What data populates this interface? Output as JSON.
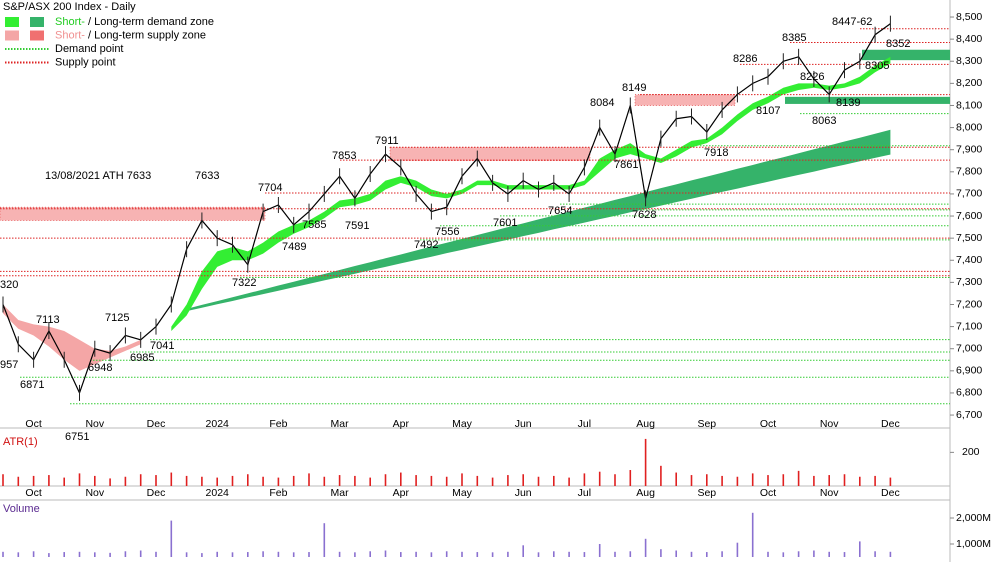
{
  "chart_data": {
    "type": "line",
    "title": "S&P/ASX 200 Index - Daily",
    "categories": [
      null,
      null,
      "Oct",
      null,
      null,
      null,
      "Nov",
      null,
      null,
      null,
      "Dec",
      null,
      null,
      null,
      "2024",
      null,
      null,
      null,
      "Feb",
      null,
      null,
      null,
      "Mar",
      null,
      null,
      null,
      "Apr",
      null,
      null,
      null,
      "May",
      null,
      null,
      null,
      "Jun",
      null,
      null,
      null,
      "Jul",
      null,
      null,
      null,
      "Aug",
      null,
      null,
      null,
      "Sep",
      null,
      null,
      null,
      "Oct",
      null,
      null,
      null,
      "Nov",
      null,
      null,
      null,
      "Dec"
    ],
    "price": {
      "color": "#000000",
      "values": [
        7200,
        7020,
        6950,
        7080,
        6950,
        6800,
        7000,
        6980,
        7060,
        7040,
        7100,
        7200,
        7450,
        7580,
        7500,
        7470,
        7380,
        7620,
        7650,
        7560,
        7620,
        7700,
        7780,
        7680,
        7790,
        7880,
        7820,
        7700,
        7620,
        7640,
        7780,
        7860,
        7750,
        7700,
        7760,
        7720,
        7750,
        7700,
        7820,
        8000,
        7880,
        8100,
        7680,
        7950,
        8040,
        8050,
        7980,
        8080,
        8150,
        8200,
        8230,
        8300,
        8320,
        8220,
        8150,
        8260,
        8300,
        8420,
        8470
      ]
    },
    "short_term_supply_zone": {
      "color": "#f4a6a6",
      "upper": [
        7200,
        7130,
        7110,
        7100,
        7080,
        7040,
        7000,
        6990,
        7010,
        7040,
        null,
        null,
        null,
        null,
        null,
        null,
        null,
        null,
        null,
        null,
        null,
        null,
        null,
        null,
        null,
        null,
        null,
        null,
        null,
        null,
        null,
        null,
        null,
        null,
        null,
        null,
        null,
        null,
        null,
        null,
        null,
        null,
        null,
        null,
        null,
        null,
        null,
        null,
        null,
        null,
        null,
        null,
        null,
        null,
        null,
        null,
        null,
        null,
        null
      ],
      "lower": [
        7160,
        7090,
        7060,
        7010,
        6950,
        6900,
        6930,
        6960,
        6990,
        7020,
        null,
        null,
        null,
        null,
        null,
        null,
        null,
        null,
        null,
        null,
        null,
        null,
        null,
        null,
        null,
        null,
        null,
        null,
        null,
        null,
        null,
        null,
        null,
        null,
        null,
        null,
        null,
        null,
        null,
        null,
        null,
        null,
        null,
        null,
        null,
        null,
        null,
        null,
        null,
        null,
        null,
        null,
        null,
        null,
        null,
        null,
        null,
        null,
        null
      ]
    },
    "short_term_demand_zone": {
      "color": "#33ee33",
      "upper": [
        null,
        null,
        null,
        null,
        null,
        null,
        null,
        null,
        null,
        null,
        null,
        7100,
        7200,
        7350,
        7440,
        7460,
        7440,
        7480,
        7530,
        7560,
        7580,
        7620,
        7670,
        7680,
        7700,
        7760,
        7780,
        7760,
        7720,
        7700,
        7720,
        7760,
        7760,
        7740,
        7740,
        7740,
        7740,
        7740,
        7760,
        7860,
        7900,
        7930,
        7880,
        7860,
        7900,
        7940,
        7950,
        8000,
        8060,
        8110,
        8140,
        8180,
        8200,
        8200,
        8190,
        8200,
        8230,
        8280,
        8320
      ],
      "lower": [
        null,
        null,
        null,
        null,
        null,
        null,
        null,
        null,
        null,
        null,
        null,
        7080,
        7150,
        7270,
        7370,
        7400,
        7400,
        7430,
        7480,
        7520,
        7550,
        7590,
        7640,
        7650,
        7670,
        7720,
        7750,
        7730,
        7690,
        7680,
        7700,
        7740,
        7740,
        7720,
        7720,
        7720,
        7720,
        7720,
        7740,
        7800,
        7860,
        7880,
        7860,
        7840,
        7870,
        7910,
        7930,
        7970,
        8030,
        8080,
        8110,
        8150,
        8170,
        8180,
        8170,
        8180,
        8200,
        8250,
        8290
      ]
    },
    "long_term_demand_zone": {
      "color": "#35b36a",
      "upper": [
        null,
        null,
        null,
        null,
        null,
        null,
        null,
        null,
        null,
        null,
        null,
        null,
        7180,
        7198,
        7215,
        7233,
        7250,
        7268,
        7286,
        7303,
        7321,
        7338,
        7356,
        7374,
        7391,
        7409,
        7426,
        7444,
        7462,
        7479,
        7497,
        7514,
        7532,
        7550,
        7567,
        7585,
        7602,
        7620,
        7638,
        7655,
        7673,
        7690,
        7708,
        7726,
        7743,
        7761,
        7778,
        7796,
        7814,
        7831,
        7849,
        7866,
        7884,
        7902,
        7919,
        7937,
        7954,
        7972,
        7990
      ],
      "lower": [
        null,
        null,
        null,
        null,
        null,
        null,
        null,
        null,
        null,
        null,
        null,
        null,
        7170,
        7185,
        7201,
        7216,
        7232,
        7247,
        7262,
        7278,
        7293,
        7309,
        7324,
        7339,
        7355,
        7370,
        7386,
        7401,
        7416,
        7432,
        7447,
        7463,
        7478,
        7493,
        7509,
        7524,
        7540,
        7555,
        7570,
        7586,
        7601,
        7617,
        7632,
        7647,
        7663,
        7678,
        7694,
        7709,
        7724,
        7740,
        7755,
        7771,
        7786,
        7801,
        7817,
        7832,
        7848,
        7863,
        7878
      ]
    },
    "supply_zones": [
      {
        "low": 7580,
        "high": 7640
      },
      {
        "low": 7850,
        "high": 7911
      },
      {
        "low": 8100,
        "high": 8149
      }
    ],
    "demand_zones": [
      {
        "low": 8305,
        "high": 8352
      },
      {
        "low": 8107,
        "high": 8139
      }
    ],
    "supply_zone_color": "#f7b3b3",
    "demand_zone_color": "#35b36a",
    "demand_points": [
      8063,
      7918,
      7654,
      7628,
      7601,
      7556,
      7492,
      7322,
      7041,
      6985,
      6948,
      6871,
      6751
    ],
    "demand_point_color": "#33cc33",
    "supply_points": [
      8447,
      8385,
      8286,
      8149,
      7911,
      7853,
      7704,
      7633,
      7500,
      7350,
      7330
    ],
    "supply_point_color": "#dd2222",
    "annotations": [
      "320",
      "7113",
      "7125",
      "957",
      "6871",
      "6751",
      "6948",
      "6985",
      "7041",
      "7322",
      "7633",
      "7704",
      "7489",
      "7585",
      "7853",
      "7591",
      "7911",
      "7492",
      "7556",
      "7601",
      "7654",
      "7628",
      "7861",
      "8084",
      "8149",
      "7918",
      "8107",
      "8286",
      "8385",
      "8226",
      "8063",
      "8139",
      "8305",
      "8352",
      "8447-62",
      "13/08/2021 ATH 7633"
    ],
    "legend": [
      {
        "parts": [
          "Short-",
          "/ Long-term demand zone"
        ]
      },
      {
        "parts": [
          "Short-",
          "/ Long-term supply zone"
        ]
      },
      {
        "parts": [
          "Demand point"
        ]
      },
      {
        "parts": [
          "Supply point"
        ]
      }
    ],
    "ylim": [
      6655,
      8577
    ],
    "yticks": [
      {
        "value": 8500,
        "label": "8,500"
      },
      {
        "value": 8400,
        "label": "8,400"
      },
      {
        "value": 8300,
        "label": "8,300"
      },
      {
        "value": 8200,
        "label": "8,200"
      },
      {
        "value": 8100,
        "label": "8,100"
      },
      {
        "value": 8000,
        "label": "8,000"
      },
      {
        "value": 7900,
        "label": "7,900"
      },
      {
        "value": 7800,
        "label": "7,800"
      },
      {
        "value": 7700,
        "label": "7,700"
      },
      {
        "value": 7600,
        "label": "7,600"
      },
      {
        "value": 7500,
        "label": "7,500"
      },
      {
        "value": 7400,
        "label": "7,400"
      },
      {
        "value": 7300,
        "label": "7,300"
      },
      {
        "value": 7200,
        "label": "7,200"
      },
      {
        "value": 7100,
        "label": "7,100"
      },
      {
        "value": 7000,
        "label": "7,000"
      },
      {
        "value": 6900,
        "label": "6,900"
      },
      {
        "value": 6800,
        "label": "6,800"
      },
      {
        "value": 6700,
        "label": "6,700"
      }
    ],
    "atr": {
      "title": "ATR(1)",
      "color": "#e02020",
      "values": [
        70,
        55,
        60,
        65,
        50,
        75,
        60,
        45,
        55,
        70,
        65,
        80,
        60,
        55,
        50,
        60,
        70,
        55,
        50,
        60,
        75,
        55,
        65,
        60,
        50,
        70,
        80,
        65,
        60,
        55,
        75,
        60,
        50,
        65,
        70,
        55,
        60,
        50,
        75,
        85,
        70,
        95,
        280,
        120,
        80,
        65,
        70,
        60,
        55,
        75,
        65,
        70,
        90,
        60,
        65,
        70,
        55,
        60,
        50
      ],
      "ylim": [
        0,
        333
      ],
      "yticks": [
        200
      ]
    },
    "volume": {
      "title": "Volume",
      "color": "#8a70d0",
      "values": [
        700,
        680,
        720,
        650,
        690,
        700,
        680,
        660,
        720,
        750,
        700,
        1900,
        680,
        650,
        700,
        680,
        690,
        720,
        700,
        680,
        690,
        1800,
        700,
        680,
        720,
        750,
        690,
        700,
        680,
        720,
        700,
        690,
        680,
        700,
        950,
        680,
        720,
        700,
        690,
        1000,
        700,
        720,
        1200,
        800,
        750,
        700,
        690,
        720,
        1050,
        2200,
        700,
        680,
        720,
        750,
        700,
        690,
        1100,
        720,
        700
      ],
      "ylim": [
        500,
        2500
      ],
      "yticks": [
        {
          "value": 2000,
          "label": "2,000M"
        },
        {
          "value": 1000,
          "label": "1,000M"
        }
      ]
    }
  }
}
